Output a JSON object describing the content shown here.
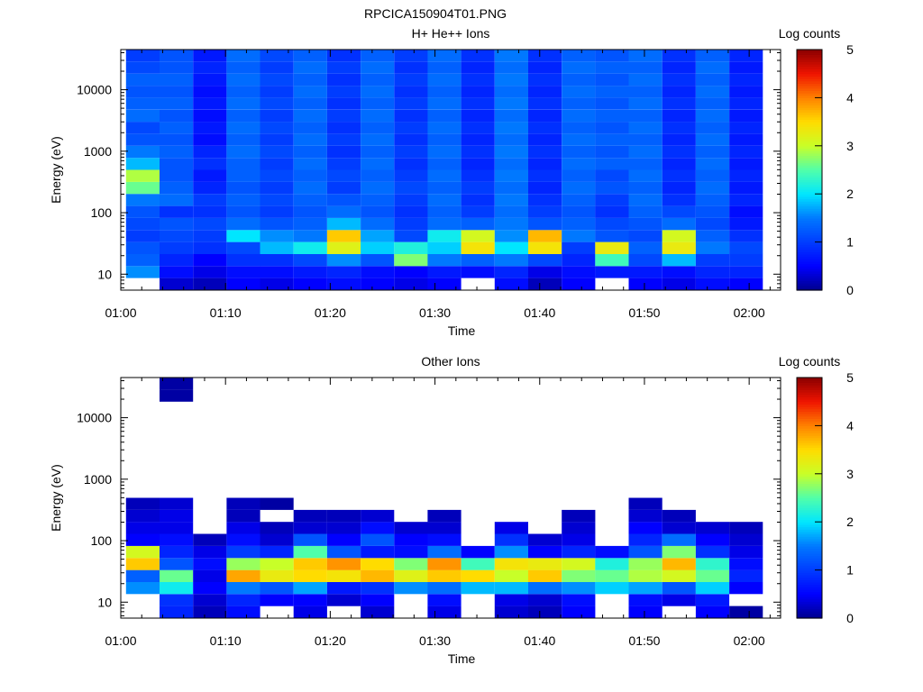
{
  "figure_title": "RPCICA150904T01.PNG",
  "chart_data": [
    {
      "type": "heatmap",
      "title": "H+ He++ Ions",
      "xlabel": "Time",
      "ylabel": "Energy (eV)",
      "x_ticks": [
        "01:00",
        "01:10",
        "01:20",
        "01:30",
        "01:40",
        "01:50",
        "02:00"
      ],
      "x_range_minutes": [
        0,
        63
      ],
      "y_ticks": [
        "10",
        "100",
        "1000",
        "10000"
      ],
      "y_scale": "log",
      "y_range": [
        5.5,
        45000
      ],
      "colorbar": {
        "label": "Log counts",
        "min": 0,
        "max": 5,
        "ticks": [
          "0",
          "1",
          "2",
          "3",
          "4",
          "5"
        ]
      },
      "columns_start_minute": 0.5,
      "column_width_minutes": 3.2,
      "columns": [
        [
          null,
          1.6,
          1.3,
          1.2,
          1.0,
          1.1,
          1.2,
          1.5,
          2.6,
          2.9,
          1.8,
          1.5,
          1.2,
          1.1,
          1.4,
          1.3,
          1.2,
          1.3,
          1.1,
          1.0
        ],
        [
          0.3,
          0.6,
          0.8,
          1.0,
          1.1,
          1.2,
          0.9,
          1.4,
          1.3,
          1.2,
          1.2,
          1.3,
          1.2,
          1.3,
          1.2,
          1.3,
          1.2,
          1.3,
          1.2,
          1.2
        ],
        [
          0.2,
          0.4,
          0.5,
          0.9,
          1.0,
          1.1,
          0.9,
          1.0,
          0.8,
          0.7,
          0.9,
          0.8,
          0.6,
          0.7,
          0.6,
          0.7,
          0.6,
          0.7,
          0.8,
          0.7
        ],
        [
          0.5,
          0.6,
          0.9,
          1.1,
          2.0,
          1.4,
          1.2,
          1.3,
          1.2,
          1.3,
          1.3,
          1.4,
          1.3,
          1.4,
          1.3,
          1.4,
          1.3,
          1.4,
          1.3,
          1.4
        ],
        [
          0.4,
          0.6,
          0.9,
          1.8,
          1.6,
          1.2,
          1.0,
          1.1,
          1.0,
          1.1,
          1.0,
          1.1,
          1.0,
          1.1,
          1.0,
          1.1,
          1.0,
          1.1,
          1.0,
          1.1
        ],
        [
          0.5,
          0.7,
          1.1,
          2.1,
          1.5,
          1.3,
          1.2,
          1.3,
          1.4,
          1.3,
          1.4,
          1.3,
          1.4,
          1.3,
          1.4,
          1.3,
          1.4,
          1.3,
          1.4,
          1.3
        ],
        [
          0.6,
          0.8,
          1.6,
          3.2,
          3.6,
          1.8,
          1.4,
          1.2,
          1.0,
          1.1,
          1.0,
          0.9,
          1.0,
          0.9,
          1.0,
          0.9,
          1.0,
          0.9,
          1.0,
          0.9
        ],
        [
          0.5,
          0.6,
          1.2,
          1.9,
          1.7,
          1.4,
          1.2,
          1.3,
          1.4,
          1.3,
          1.4,
          1.3,
          1.4,
          1.3,
          1.4,
          1.3,
          1.4,
          1.3,
          1.4,
          1.3
        ],
        [
          0.4,
          0.5,
          2.7,
          2.2,
          1.1,
          1.0,
          0.9,
          1.0,
          1.1,
          1.0,
          0.9,
          1.0,
          0.9,
          1.0,
          0.9,
          1.0,
          0.9,
          1.0,
          0.9,
          1.0
        ],
        [
          0.5,
          0.7,
          1.5,
          1.9,
          2.1,
          1.4,
          1.3,
          1.4,
          1.3,
          1.4,
          1.3,
          1.4,
          1.3,
          1.4,
          1.3,
          1.4,
          1.3,
          1.4,
          1.3,
          1.4
        ],
        [
          null,
          0.6,
          1.3,
          3.4,
          3.1,
          1.3,
          1.0,
          0.9,
          1.0,
          0.9,
          0.8,
          0.9,
          0.8,
          0.9,
          0.8,
          0.9,
          0.8,
          0.9,
          0.8,
          0.9
        ],
        [
          0.6,
          0.8,
          1.5,
          2.0,
          1.6,
          1.5,
          1.4,
          1.5,
          1.4,
          1.5,
          1.4,
          1.5,
          1.4,
          1.5,
          1.4,
          1.5,
          1.4,
          1.5,
          1.4,
          1.5
        ],
        [
          0.2,
          0.4,
          1.1,
          3.4,
          3.7,
          1.2,
          1.0,
          0.9,
          0.8,
          0.9,
          0.8,
          0.9,
          0.8,
          0.9,
          0.8,
          0.9,
          0.8,
          0.9,
          0.8,
          0.9
        ],
        [
          0.5,
          0.6,
          0.8,
          1.0,
          1.5,
          1.3,
          1.2,
          1.3,
          1.4,
          1.3,
          1.4,
          1.3,
          1.4,
          1.3,
          1.4,
          1.3,
          1.4,
          1.3,
          1.4,
          1.3
        ],
        [
          null,
          0.7,
          2.4,
          3.3,
          1.2,
          1.1,
          0.9,
          1.0,
          1.2,
          1.1,
          1.3,
          1.2,
          1.3,
          1.2,
          1.3,
          1.2,
          1.3,
          1.2,
          1.3,
          1.2
        ],
        [
          0.5,
          0.7,
          1.1,
          1.3,
          1.1,
          1.2,
          1.3,
          1.4,
          1.3,
          1.4,
          1.3,
          1.4,
          1.3,
          1.4,
          1.3,
          1.4,
          1.3,
          1.4,
          1.3,
          1.4
        ],
        [
          0.4,
          0.6,
          1.8,
          3.3,
          3.1,
          1.4,
          1.1,
          0.9,
          0.8,
          0.9,
          0.8,
          0.9,
          0.8,
          0.9,
          0.8,
          0.9,
          0.8,
          0.9,
          0.8,
          0.9
        ],
        [
          0.6,
          0.8,
          1.0,
          1.5,
          1.3,
          1.1,
          1.2,
          1.3,
          1.4,
          1.3,
          1.4,
          1.3,
          1.4,
          1.3,
          1.4,
          1.3,
          1.4,
          1.3,
          1.4,
          1.3
        ],
        [
          0.5,
          0.8,
          1.0,
          1.1,
          0.9,
          0.7,
          0.6,
          0.8,
          0.7,
          0.8,
          0.7,
          0.8,
          0.7,
          0.8,
          0.7,
          0.8,
          0.7,
          0.8,
          0.7,
          0.8
        ]
      ]
    },
    {
      "type": "heatmap",
      "title": "Other Ions",
      "xlabel": "Time",
      "ylabel": "Energy (eV)",
      "x_ticks": [
        "01:00",
        "01:10",
        "01:20",
        "01:30",
        "01:40",
        "01:50",
        "02:00"
      ],
      "x_range_minutes": [
        0,
        63
      ],
      "y_ticks": [
        "10",
        "100",
        "1000",
        "10000"
      ],
      "y_scale": "log",
      "y_range": [
        5.5,
        45000
      ],
      "colorbar": {
        "label": "Log counts",
        "min": 0,
        "max": 5,
        "ticks": [
          "0",
          "1",
          "2",
          "3",
          "4",
          "5"
        ]
      },
      "columns_start_minute": 0.5,
      "column_width_minutes": 3.2,
      "columns": [
        [
          null,
          null,
          1.6,
          1.3,
          3.6,
          3.1,
          0.5,
          0.4,
          0.3,
          0.2,
          null,
          null,
          null,
          null,
          null,
          null,
          null,
          null,
          null,
          null
        ],
        [
          0.8,
          0.9,
          2.1,
          2.6,
          1.2,
          0.8,
          0.6,
          0.4,
          0.4,
          0.3,
          null,
          null,
          null,
          null,
          null,
          null,
          null,
          null,
          0.1,
          0.1
        ],
        [
          0.2,
          0.3,
          0.5,
          0.4,
          0.6,
          0.4,
          0.2,
          null,
          null,
          null,
          null,
          null,
          null,
          null,
          null,
          null,
          null,
          null,
          null,
          null
        ],
        [
          0.6,
          0.8,
          1.5,
          3.8,
          2.8,
          1.0,
          0.6,
          0.4,
          0.2,
          0.2,
          null,
          null,
          null,
          null,
          null,
          null,
          null,
          null,
          null,
          null
        ],
        [
          null,
          0.5,
          1.2,
          3.3,
          3.0,
          0.8,
          0.3,
          0.2,
          null,
          0.1,
          null,
          null,
          null,
          null,
          null,
          null,
          null,
          null,
          null,
          null
        ],
        [
          0.4,
          0.5,
          1.7,
          3.5,
          3.6,
          2.5,
          1.2,
          0.3,
          0.2,
          null,
          null,
          null,
          null,
          null,
          null,
          null,
          null,
          null,
          null,
          null
        ],
        [
          null,
          0.3,
          0.7,
          3.4,
          3.9,
          1.2,
          0.5,
          0.3,
          0.2,
          null,
          null,
          null,
          null,
          null,
          null,
          null,
          null,
          null,
          null,
          null
        ],
        [
          0.3,
          0.5,
          0.9,
          3.7,
          3.5,
          0.7,
          1.2,
          0.6,
          0.3,
          null,
          null,
          null,
          null,
          null,
          null,
          null,
          null,
          null,
          null,
          null
        ],
        [
          null,
          null,
          1.6,
          3.2,
          2.7,
          0.6,
          0.5,
          0.3,
          null,
          null,
          null,
          null,
          null,
          null,
          null,
          null,
          null,
          null,
          null,
          null
        ],
        [
          0.4,
          0.6,
          1.4,
          3.6,
          3.9,
          1.4,
          0.6,
          0.3,
          0.2,
          null,
          null,
          null,
          null,
          null,
          null,
          null,
          null,
          null,
          null,
          null
        ],
        [
          null,
          null,
          1.8,
          3.5,
          2.4,
          0.5,
          null,
          null,
          null,
          null,
          null,
          null,
          null,
          null,
          null,
          null,
          null,
          null,
          null,
          null
        ],
        [
          0.3,
          0.4,
          1.8,
          3.0,
          3.4,
          1.6,
          0.9,
          0.4,
          null,
          null,
          null,
          null,
          null,
          null,
          null,
          null,
          null,
          null,
          null,
          null
        ],
        [
          0.2,
          0.3,
          1.4,
          3.6,
          3.3,
          0.5,
          0.3,
          null,
          null,
          null,
          null,
          null,
          null,
          null,
          null,
          null,
          null,
          null,
          null,
          null
        ],
        [
          0.5,
          0.6,
          1.6,
          2.7,
          3.1,
          0.8,
          0.4,
          0.3,
          0.2,
          null,
          null,
          null,
          null,
          null,
          null,
          null,
          null,
          null,
          null,
          null
        ],
        [
          null,
          null,
          1.9,
          2.6,
          2.2,
          0.6,
          null,
          null,
          null,
          null,
          null,
          null,
          null,
          null,
          null,
          null,
          null,
          null,
          null,
          null
        ],
        [
          0.5,
          0.6,
          1.7,
          2.9,
          2.8,
          1.2,
          0.8,
          0.5,
          0.3,
          0.2,
          null,
          null,
          null,
          null,
          null,
          null,
          null,
          null,
          null,
          null
        ],
        [
          null,
          0.4,
          1.2,
          3.1,
          3.7,
          2.7,
          1.4,
          0.3,
          0.2,
          null,
          null,
          null,
          null,
          null,
          null,
          null,
          null,
          null,
          null,
          null
        ],
        [
          0.5,
          0.7,
          1.9,
          2.6,
          2.3,
          0.9,
          0.5,
          0.3,
          null,
          null,
          null,
          null,
          null,
          null,
          null,
          null,
          null,
          null,
          null,
          null
        ],
        [
          0.1,
          null,
          0.5,
          0.8,
          0.6,
          0.4,
          0.3,
          0.2,
          null,
          null,
          null,
          null,
          null,
          null,
          null,
          null,
          null,
          null,
          null,
          null
        ]
      ]
    }
  ]
}
